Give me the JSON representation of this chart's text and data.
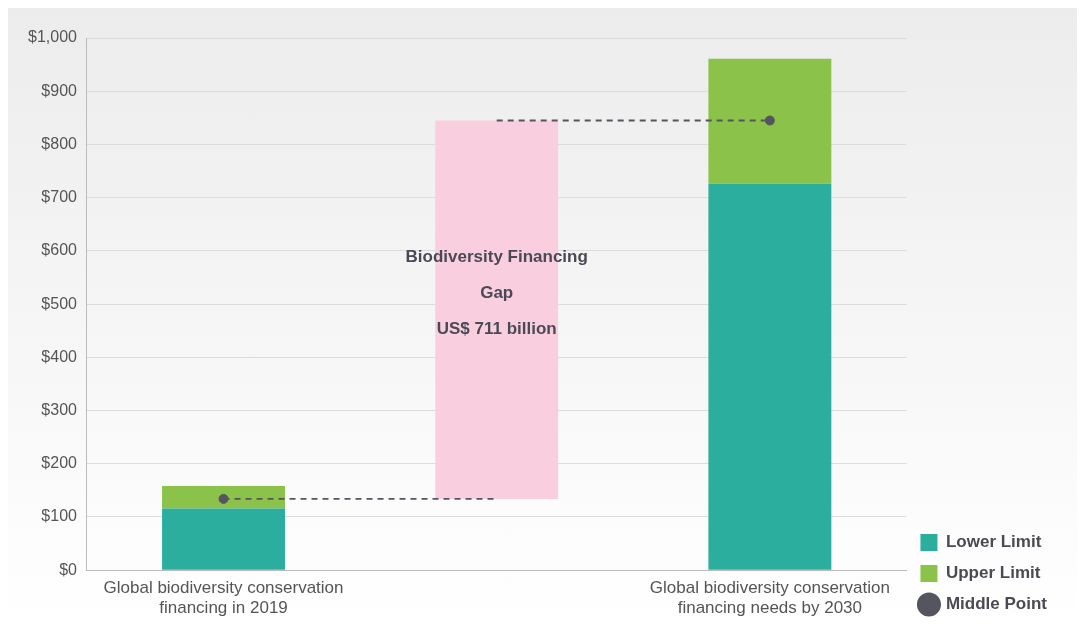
{
  "chart_data": {
    "type": "bar",
    "categories": [
      "Global biodiversity conservation financing in 2019",
      null,
      "Global biodiversity conservation financing needs by 2030"
    ],
    "series": [
      {
        "name": "Lower Limit",
        "color": "#2bae9e",
        "values": [
          116,
          null,
          726
        ]
      },
      {
        "name": "Upper Limit",
        "color": "#8bc34a",
        "values": [
          42,
          null,
          235
        ]
      },
      {
        "color": "#f9cfdf",
        "values": [
          null,
          711,
          null
        ],
        "base": [
          null,
          134,
          null
        ]
      },
      {
        "type": "line",
        "color": "#555560",
        "values": [
          134,
          134,
          null
        ],
        "line_style": "dashed",
        "marker": "none"
      },
      {
        "type": "line",
        "color": "#555560",
        "values": [
          null,
          845,
          845
        ],
        "line_style": "dashed",
        "marker": "none"
      },
      {
        "name": "Middle Point",
        "type": "scatter",
        "color": "#555560",
        "values": [
          134,
          null,
          845
        ]
      }
    ],
    "stacked": true,
    "ylim": [
      0,
      1000
    ],
    "yticks": [
      {
        "value": 0,
        "label": "$0"
      },
      {
        "value": 100,
        "label": "$100"
      },
      {
        "value": 200,
        "label": "$200"
      },
      {
        "value": 300,
        "label": "$300"
      },
      {
        "value": 400,
        "label": "$400"
      },
      {
        "value": 500,
        "label": "$500"
      },
      {
        "value": 600,
        "label": "$600"
      },
      {
        "value": 700,
        "label": "$700"
      },
      {
        "value": 800,
        "label": "$800"
      },
      {
        "value": 900,
        "label": "$900"
      },
      {
        "value": 1000,
        "label": "$1,000"
      }
    ],
    "grid": "y",
    "legend": "bottom right",
    "marker": "circle",
    "annotations": [
      "Biodiversity Financing\nGap\nUS$ 711 billion"
    ]
  }
}
